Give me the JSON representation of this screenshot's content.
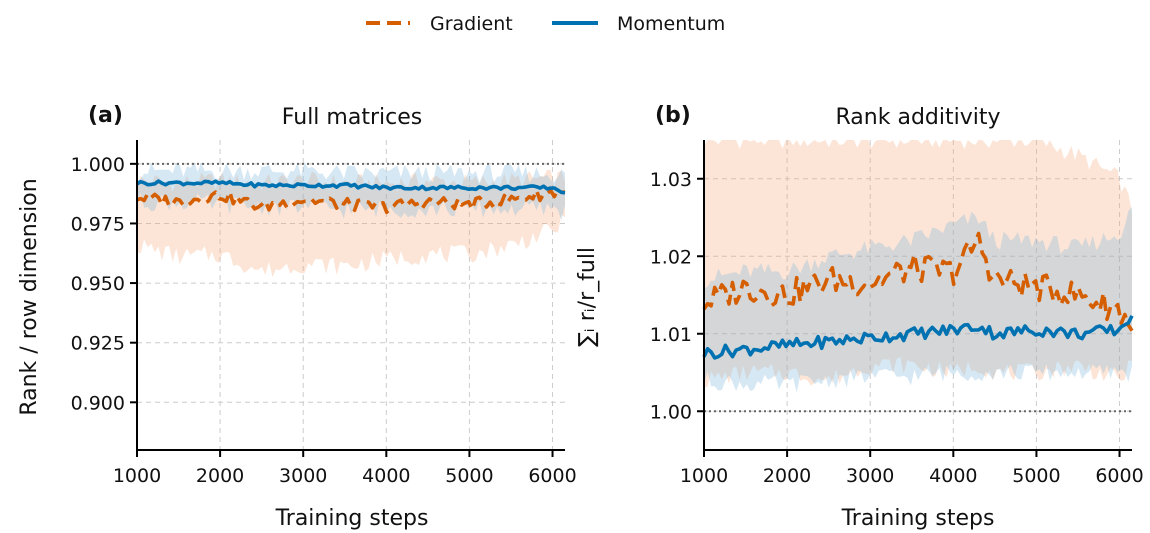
{
  "legend": [
    {
      "label": "Gradient",
      "color": "#d55e00",
      "dash": "dashed"
    },
    {
      "label": "Momentum",
      "color": "#0072b2",
      "dash": "solid"
    }
  ],
  "chart_data": [
    {
      "type": "line",
      "panel_label": "(a)",
      "title": "Full matrices",
      "xlabel": "Training steps",
      "ylabel": "Rank / row dimension",
      "xlim": [
        1000,
        6150
      ],
      "ylim": [
        0.88,
        1.01
      ],
      "xticks": [
        1000,
        2000,
        3000,
        4000,
        5000,
        6000
      ],
      "yticks": [
        0.9,
        0.925,
        0.95,
        0.975,
        1.0
      ],
      "ytick_labels": [
        "0.900",
        "0.925",
        "0.950",
        "0.975",
        "1.000"
      ],
      "grid": true,
      "reference_line": 1.0,
      "x": [
        1000,
        1500,
        2000,
        2500,
        3000,
        3500,
        4000,
        4500,
        5000,
        5500,
        6000,
        6150
      ],
      "series": [
        {
          "name": "Gradient",
          "values": [
            0.986,
            0.984,
            0.987,
            0.982,
            0.985,
            0.983,
            0.982,
            0.984,
            0.983,
            0.985,
            0.988,
            0.989
          ],
          "band_low": [
            0.966,
            0.961,
            0.962,
            0.955,
            0.958,
            0.957,
            0.96,
            0.962,
            0.962,
            0.966,
            0.972,
            0.976
          ],
          "band_high": [
            0.993,
            0.992,
            0.993,
            0.992,
            0.993,
            0.992,
            0.992,
            0.993,
            0.992,
            0.993,
            0.994,
            0.994
          ]
        },
        {
          "name": "Momentum",
          "values": [
            0.992,
            0.992,
            0.992,
            0.991,
            0.991,
            0.991,
            0.99,
            0.99,
            0.99,
            0.99,
            0.99,
            0.988
          ],
          "band_low": [
            0.984,
            0.984,
            0.983,
            0.982,
            0.982,
            0.981,
            0.981,
            0.981,
            0.981,
            0.981,
            0.981,
            0.98
          ],
          "band_high": [
            0.997,
            0.997,
            0.997,
            0.997,
            0.997,
            0.996,
            0.996,
            0.996,
            0.996,
            0.996,
            0.996,
            0.995
          ]
        }
      ]
    },
    {
      "type": "line",
      "panel_label": "(b)",
      "title": "Rank additivity",
      "xlabel": "Training steps",
      "ylabel": "∑ᵢ rᵢ/r_full",
      "xlim": [
        1000,
        6150
      ],
      "ylim": [
        0.995,
        1.035
      ],
      "xticks": [
        1000,
        2000,
        3000,
        4000,
        5000,
        6000
      ],
      "yticks": [
        1.0,
        1.01,
        1.02,
        1.03
      ],
      "ytick_labels": [
        "1.00",
        "1.01",
        "1.02",
        "1.03"
      ],
      "grid": true,
      "reference_line": 1.0,
      "x": [
        1000,
        1500,
        2000,
        2500,
        3000,
        3500,
        4000,
        4300,
        4500,
        5000,
        5500,
        6000,
        6150
      ],
      "series": [
        {
          "name": "Gradient",
          "values": [
            1.014,
            1.016,
            1.015,
            1.017,
            1.0165,
            1.0185,
            1.018,
            1.022,
            1.017,
            1.016,
            1.015,
            1.013,
            1.011
          ],
          "band_low": [
            1.004,
            1.005,
            1.005,
            1.004,
            1.006,
            1.006,
            1.005,
            1.006,
            1.005,
            1.005,
            1.006,
            1.004,
            1.006
          ],
          "band_high": [
            1.035,
            1.035,
            1.035,
            1.035,
            1.035,
            1.035,
            1.035,
            1.035,
            1.035,
            1.035,
            1.033,
            1.03,
            1.026
          ]
        },
        {
          "name": "Momentum",
          "values": [
            1.0075,
            1.008,
            1.0085,
            1.009,
            1.0095,
            1.01,
            1.0105,
            1.011,
            1.01,
            1.0105,
            1.01,
            1.0105,
            1.0125
          ],
          "band_low": [
            1.004,
            1.0035,
            1.0035,
            1.004,
            1.0045,
            1.0045,
            1.005,
            1.005,
            1.005,
            1.005,
            1.005,
            1.005,
            1.005
          ],
          "band_high": [
            1.017,
            1.018,
            1.018,
            1.02,
            1.021,
            1.022,
            1.024,
            1.025,
            1.022,
            1.022,
            1.021,
            1.023,
            1.026
          ]
        }
      ]
    }
  ]
}
